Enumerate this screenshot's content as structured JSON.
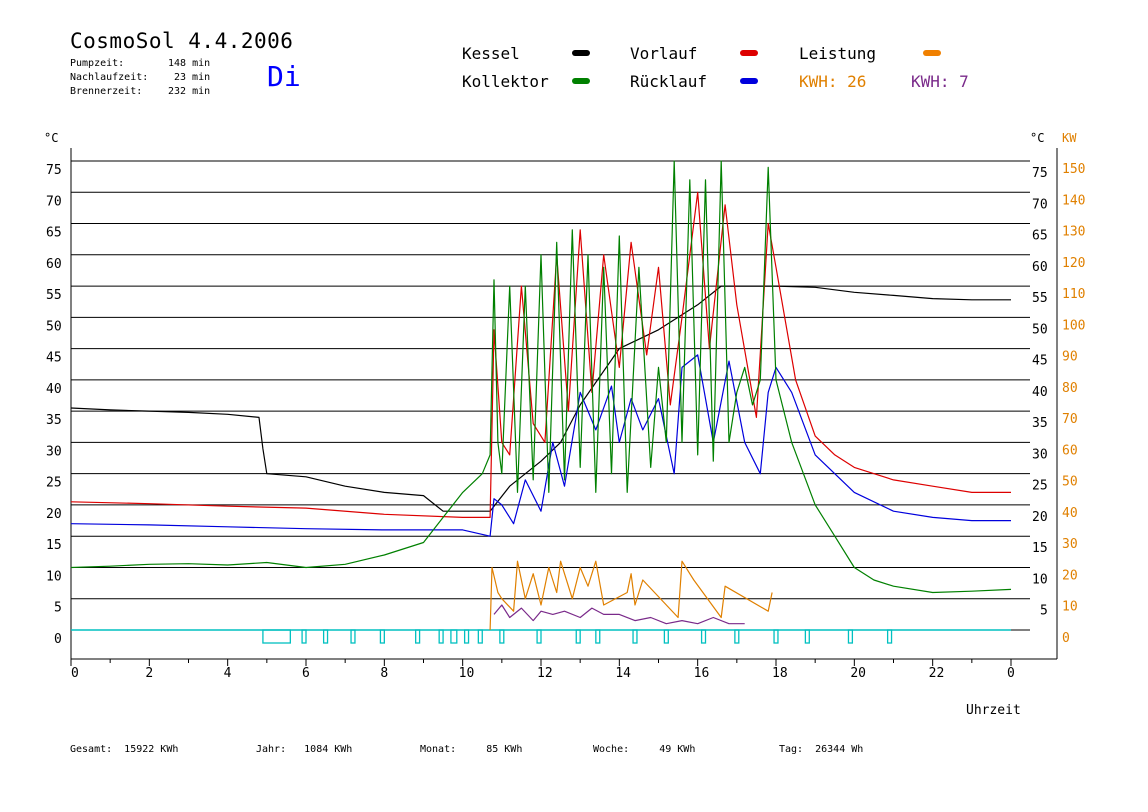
{
  "header": {
    "title": "CosmoSol 4.4.2006",
    "day": "Di",
    "stats": [
      {
        "label": "Pumpzeit:",
        "value": "148 min"
      },
      {
        "label": "Nachlaufzeit:",
        "value": "23 min"
      },
      {
        "label": "Brennerzeit:",
        "value": "232 min"
      }
    ]
  },
  "legend": {
    "items": [
      {
        "label": "Kessel",
        "color": "#000000"
      },
      {
        "label": "Vorlauf",
        "color": "#dd0000"
      },
      {
        "label": "Leistung",
        "color": "#f08000"
      },
      {
        "label": "Kollektor",
        "color": "#008000"
      },
      {
        "label": "Rücklauf",
        "color": "#0000dd"
      }
    ],
    "kwh_solar": "KWH: 26",
    "kwh_burner": "KWH: 7",
    "kwh_solar_color": "#e08000",
    "kwh_burner_color": "#7a2a8a"
  },
  "footer": {
    "gesamt": "Gesamt:  15922 KWh",
    "jahr": "Jahr:   1084 KWh",
    "monat": "Monat:     85 KWh",
    "woche": "Woche:     49 KWh",
    "tag": "Tag:  26344 Wh"
  },
  "chart_data": {
    "type": "line",
    "x_unit": "hour",
    "xlim": [
      0,
      24
    ],
    "ylim_left": [
      0,
      75
    ],
    "ylim_right": [
      0,
      150
    ],
    "left_unit": "°C",
    "right_units": [
      "°C",
      "KW"
    ],
    "xlabel": "Uhrzeit",
    "grid": "horizontal",
    "x_ticks": [
      "0",
      "2",
      "4",
      "6",
      "8",
      "10",
      "12",
      "14",
      "16",
      "18",
      "20",
      "22",
      "0"
    ],
    "y_ticks_left": [
      "0",
      "5",
      "10",
      "15",
      "20",
      "25",
      "30",
      "35",
      "40",
      "45",
      "50",
      "55",
      "60",
      "65",
      "70",
      "75"
    ],
    "y_ticks_right_c": [
      "5",
      "10",
      "15",
      "20",
      "25",
      "30",
      "35",
      "40",
      "45",
      "50",
      "55",
      "60",
      "65",
      "70",
      "75"
    ],
    "y_ticks_right_kw": [
      "0",
      "10",
      "20",
      "30",
      "40",
      "50",
      "60",
      "70",
      "80",
      "90",
      "100",
      "110",
      "120",
      "130",
      "140",
      "150"
    ],
    "series": [
      {
        "name": "Kessel",
        "color": "#000000",
        "x": [
          0,
          1,
          2,
          3,
          4,
          4.8,
          4.9,
          5.0,
          6,
          7,
          8,
          9,
          9.5,
          10,
          10.7,
          11.2,
          12,
          12.5,
          13,
          14,
          15,
          16,
          16.6,
          17,
          18,
          19,
          20,
          21,
          22,
          23,
          24
        ],
        "y": [
          35.5,
          35.2,
          35.0,
          34.8,
          34.5,
          34,
          29,
          25,
          24.5,
          23,
          22,
          21.5,
          19,
          19,
          19,
          23,
          27,
          30,
          36,
          45,
          48,
          52,
          55,
          55,
          55,
          54.8,
          54,
          53.5,
          53,
          52.8,
          52.8
        ]
      },
      {
        "name": "Vorlauf",
        "color": "#dd0000",
        "x": [
          0,
          2,
          4,
          6,
          8,
          10,
          10.7,
          10.8,
          11,
          11.2,
          11.5,
          11.8,
          12.1,
          12.4,
          12.7,
          13,
          13.3,
          13.6,
          14,
          14.3,
          14.7,
          15,
          15.3,
          15.6,
          16,
          16.3,
          16.7,
          17,
          17.5,
          17.8,
          18,
          18.5,
          19,
          19.5,
          20,
          21,
          22,
          23,
          24
        ],
        "y": [
          20.5,
          20.2,
          19.8,
          19.5,
          18.5,
          18,
          18,
          48,
          30,
          28,
          55,
          33,
          30,
          60,
          35,
          64,
          38,
          60,
          42,
          62,
          44,
          58,
          36,
          50,
          70,
          45,
          68,
          52,
          34,
          65,
          58,
          40,
          31,
          28,
          26,
          24,
          23,
          22,
          22
        ]
      },
      {
        "name": "Rücklauf",
        "color": "#0000dd",
        "x": [
          0,
          2,
          4,
          6,
          8,
          10,
          10.7,
          10.8,
          11,
          11.3,
          11.6,
          12,
          12.3,
          12.6,
          13,
          13.4,
          13.8,
          14,
          14.3,
          14.6,
          15,
          15.4,
          15.6,
          16,
          16.4,
          16.8,
          17.2,
          17.6,
          17.8,
          18,
          18.4,
          19,
          20,
          21,
          22,
          23,
          24
        ],
        "y": [
          17,
          16.8,
          16.5,
          16.2,
          16,
          16,
          15,
          21,
          20,
          17,
          24,
          19,
          30,
          23,
          38,
          32,
          39,
          30,
          37,
          32,
          37,
          25,
          42,
          44,
          30,
          43,
          30,
          25,
          38,
          42,
          38,
          28,
          22,
          19,
          18,
          17.5,
          17.5
        ]
      },
      {
        "name": "Kollektor",
        "color": "#008000",
        "x": [
          0,
          1,
          2,
          3,
          4,
          5,
          6,
          7,
          8,
          9,
          9.5,
          10,
          10.5,
          10.7,
          10.8,
          10.9,
          11,
          11.2,
          11.4,
          11.6,
          11.8,
          12,
          12.2,
          12.4,
          12.6,
          12.8,
          13,
          13.2,
          13.4,
          13.6,
          13.8,
          14,
          14.2,
          14.5,
          14.8,
          15,
          15.2,
          15.4,
          15.6,
          15.8,
          16,
          16.2,
          16.4,
          16.6,
          16.8,
          17,
          17.2,
          17.4,
          17.6,
          17.8,
          18,
          18.4,
          19,
          19.5,
          20,
          20.5,
          21,
          22,
          23,
          24
        ],
        "y": [
          10,
          10.2,
          10.5,
          10.6,
          10.4,
          10.8,
          10,
          10.5,
          12,
          14,
          18,
          22,
          25,
          28,
          56,
          30,
          25,
          55,
          22,
          55,
          24,
          60,
          22,
          62,
          24,
          64,
          26,
          60,
          22,
          58,
          25,
          63,
          22,
          58,
          26,
          42,
          30,
          75,
          30,
          72,
          28,
          72,
          27,
          75,
          30,
          38,
          42,
          36,
          40,
          74,
          40,
          30,
          20,
          15,
          10,
          8,
          7,
          6,
          6.2,
          6.5
        ]
      },
      {
        "name": "Leistung",
        "color": "#e08000",
        "axis": "right",
        "x": [
          10.7,
          10.75,
          10.9,
          11.0,
          11.3,
          11.4,
          11.6,
          11.8,
          12.0,
          12.2,
          12.4,
          12.5,
          12.8,
          13.0,
          13.2,
          13.4,
          13.6,
          14.2,
          14.3,
          14.4,
          14.6,
          15.5,
          15.6,
          15.8,
          15.9,
          16.6,
          16.7,
          17.8,
          17.9
        ],
        "y": [
          0,
          20,
          12,
          10,
          6,
          22,
          10,
          18,
          8,
          20,
          12,
          22,
          10,
          20,
          14,
          22,
          8,
          12,
          18,
          8,
          16,
          4,
          22,
          18,
          16,
          4,
          14,
          6,
          12
        ]
      },
      {
        "name": "Brenner",
        "color": "#7a2a8a",
        "axis": "right",
        "x": [
          10.8,
          11.0,
          11.2,
          11.5,
          11.8,
          12.0,
          12.3,
          12.6,
          13.0,
          13.3,
          13.6,
          14.0,
          14.4,
          14.8,
          15.2,
          15.6,
          16.0,
          16.4,
          16.8,
          17.2
        ],
        "y": [
          5,
          8,
          4,
          7,
          3,
          6,
          5,
          6,
          4,
          7,
          5,
          5,
          3,
          4,
          2,
          3,
          2,
          4,
          2,
          2
        ]
      }
    ],
    "pump_on_intervals": [
      [
        4.9,
        5.6
      ],
      [
        5.9,
        6.0
      ],
      [
        6.45,
        6.55
      ],
      [
        7.15,
        7.25
      ],
      [
        7.9,
        8.0
      ],
      [
        8.8,
        8.9
      ],
      [
        9.4,
        9.5
      ],
      [
        9.7,
        9.85
      ],
      [
        10.05,
        10.15
      ],
      [
        10.4,
        10.5
      ],
      [
        10.95,
        11.05
      ],
      [
        11.9,
        12.0
      ],
      [
        12.9,
        13.0
      ],
      [
        13.4,
        13.5
      ],
      [
        14.35,
        14.45
      ],
      [
        15.15,
        15.25
      ],
      [
        16.1,
        16.2
      ],
      [
        16.95,
        17.05
      ],
      [
        17.95,
        18.05
      ],
      [
        18.75,
        18.85
      ],
      [
        19.85,
        19.95
      ],
      [
        20.85,
        20.95
      ]
    ],
    "pump_color": "#00c0c0"
  }
}
